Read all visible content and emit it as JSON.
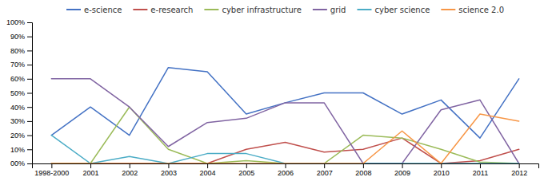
{
  "chart_data": {
    "type": "line",
    "categories": [
      "1998-2000",
      "2001",
      "2002",
      "2003",
      "2004",
      "2005",
      "2006",
      "2007",
      "2008",
      "2009",
      "2010",
      "2011",
      "2012"
    ],
    "series": [
      {
        "name": "e-science",
        "color": "#4472C4",
        "values": [
          0.2,
          0.4,
          0.2,
          0.68,
          0.65,
          0.35,
          0.43,
          0.5,
          0.5,
          0.35,
          0.45,
          0.18,
          0.6
        ]
      },
      {
        "name": "e-research",
        "color": "#C0504D",
        "values": [
          0.0,
          0.0,
          0.0,
          0.0,
          0.0,
          0.1,
          0.15,
          0.08,
          0.1,
          0.18,
          0.0,
          0.02,
          0.1
        ]
      },
      {
        "name": "cyber infrastructure",
        "color": "#9BBB59",
        "values": [
          0.0,
          0.0,
          0.4,
          0.1,
          0.0,
          0.02,
          0.0,
          0.0,
          0.2,
          0.18,
          0.1,
          0.01,
          0.0
        ]
      },
      {
        "name": "grid",
        "color": "#8064A2",
        "values": [
          0.6,
          0.6,
          0.4,
          0.12,
          0.29,
          0.32,
          0.43,
          0.43,
          0.0,
          0.0,
          0.38,
          0.45,
          0.0
        ]
      },
      {
        "name": "cyber science",
        "color": "#4BACC6",
        "values": [
          0.2,
          0.0,
          0.05,
          0.0,
          0.07,
          0.07,
          0.0,
          0.0,
          0.0,
          0.0,
          0.0,
          0.0,
          0.0
        ]
      },
      {
        "name": "science 2.0",
        "color": "#F79646",
        "values": [
          0.0,
          0.0,
          0.0,
          0.0,
          0.0,
          0.0,
          0.0,
          0.0,
          0.0,
          0.23,
          0.0,
          0.35,
          0.3
        ]
      }
    ],
    "ylim": [
      0,
      1.0
    ],
    "yticks": [
      {
        "value": 0.0,
        "label": "00%"
      },
      {
        "value": 0.1,
        "label": "10%"
      },
      {
        "value": 0.2,
        "label": "20%"
      },
      {
        "value": 0.3,
        "label": "30%"
      },
      {
        "value": 0.4,
        "label": "40%"
      },
      {
        "value": 0.5,
        "label": "50%"
      },
      {
        "value": 0.6,
        "label": "60%"
      },
      {
        "value": 0.7,
        "label": "70%"
      },
      {
        "value": 0.8,
        "label": "80%"
      },
      {
        "value": 0.9,
        "label": "90%"
      },
      {
        "value": 1.0,
        "label": "100%"
      }
    ],
    "grid": false,
    "legend": "top"
  }
}
